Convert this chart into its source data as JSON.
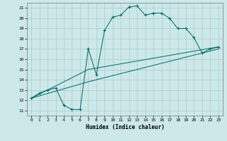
{
  "xlabel": "Humidex (Indice chaleur)",
  "bg_color": "#cce8e8",
  "line_color": "#006666",
  "grid_color": "#aacccc",
  "xlim": [
    -0.5,
    23.5
  ],
  "ylim": [
    10.5,
    21.5
  ],
  "xticks": [
    0,
    1,
    2,
    3,
    4,
    5,
    6,
    7,
    8,
    9,
    10,
    11,
    12,
    13,
    14,
    15,
    16,
    17,
    18,
    19,
    20,
    21,
    22,
    23
  ],
  "yticks": [
    11,
    12,
    13,
    14,
    15,
    16,
    17,
    18,
    19,
    20,
    21
  ],
  "line1_x": [
    0,
    1,
    2,
    3,
    4,
    5,
    6,
    7,
    8,
    9,
    10,
    11,
    12,
    13,
    14,
    15,
    16,
    17,
    18,
    19,
    20,
    21,
    22,
    23
  ],
  "line1_y": [
    12.2,
    12.7,
    13.0,
    13.2,
    11.5,
    11.1,
    11.1,
    17.0,
    14.5,
    18.8,
    20.1,
    20.3,
    21.1,
    21.2,
    20.3,
    20.5,
    20.5,
    20.0,
    19.0,
    19.0,
    18.1,
    16.6,
    17.0,
    17.2
  ],
  "line2_x": [
    0,
    7,
    23
  ],
  "line2_y": [
    12.2,
    15.0,
    17.2
  ],
  "line3_x": [
    0,
    7,
    23
  ],
  "line3_y": [
    12.2,
    13.8,
    17.0
  ]
}
